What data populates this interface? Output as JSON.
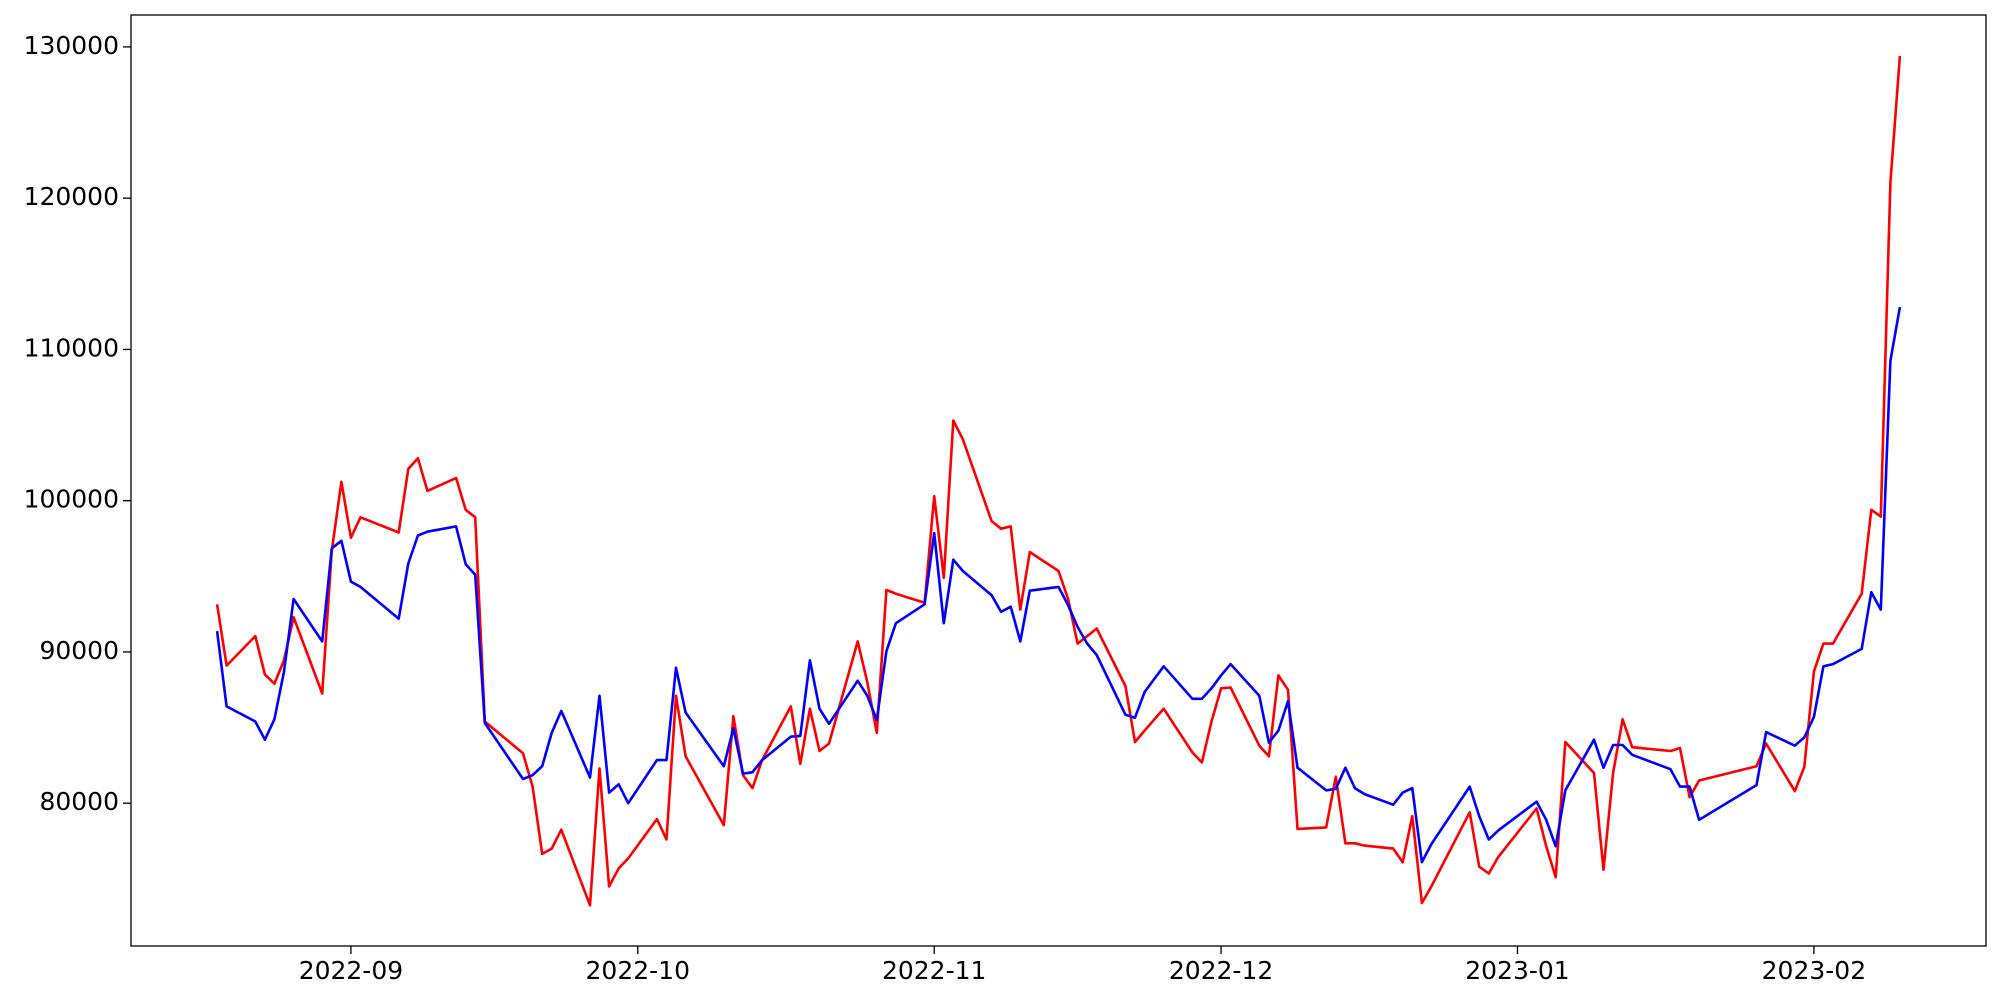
{
  "chart_data": {
    "type": "line",
    "x": [
      "2022-08-18",
      "2022-08-19",
      "2022-08-22",
      "2022-08-23",
      "2022-08-24",
      "2022-08-25",
      "2022-08-26",
      "2022-08-29",
      "2022-08-30",
      "2022-08-31",
      "2022-09-01",
      "2022-09-02",
      "2022-09-06",
      "2022-09-07",
      "2022-09-08",
      "2022-09-09",
      "2022-09-12",
      "2022-09-13",
      "2022-09-14",
      "2022-09-15",
      "2022-09-19",
      "2022-09-20",
      "2022-09-21",
      "2022-09-22",
      "2022-09-23",
      "2022-09-26",
      "2022-09-27",
      "2022-09-28",
      "2022-09-29",
      "2022-09-30",
      "2022-10-03",
      "2022-10-04",
      "2022-10-05",
      "2022-10-06",
      "2022-10-10",
      "2022-10-11",
      "2022-10-12",
      "2022-10-13",
      "2022-10-14",
      "2022-10-17",
      "2022-10-18",
      "2022-10-19",
      "2022-10-20",
      "2022-10-21",
      "2022-10-24",
      "2022-10-25",
      "2022-10-26",
      "2022-10-27",
      "2022-10-28",
      "2022-10-31",
      "2022-11-01",
      "2022-11-02",
      "2022-11-03",
      "2022-11-04",
      "2022-11-07",
      "2022-11-08",
      "2022-11-09",
      "2022-11-10",
      "2022-11-11",
      "2022-11-14",
      "2022-11-15",
      "2022-11-16",
      "2022-11-17",
      "2022-11-18",
      "2022-11-21",
      "2022-11-22",
      "2022-11-23",
      "2022-11-25",
      "2022-11-28",
      "2022-11-29",
      "2022-11-30",
      "2022-12-01",
      "2022-12-02",
      "2022-12-05",
      "2022-12-06",
      "2022-12-07",
      "2022-12-08",
      "2022-12-09",
      "2022-12-12",
      "2022-12-13",
      "2022-12-14",
      "2022-12-15",
      "2022-12-16",
      "2022-12-19",
      "2022-12-20",
      "2022-12-21",
      "2022-12-22",
      "2022-12-23",
      "2022-12-27",
      "2022-12-28",
      "2022-12-29",
      "2022-12-30",
      "2023-01-03",
      "2023-01-04",
      "2023-01-05",
      "2023-01-06",
      "2023-01-09",
      "2023-01-10",
      "2023-01-11",
      "2023-01-12",
      "2023-01-13",
      "2023-01-17",
      "2023-01-18",
      "2023-01-19",
      "2023-01-20",
      "2023-01-26",
      "2023-01-27",
      "2023-01-30",
      "2023-01-31",
      "2023-02-01",
      "2023-02-02",
      "2023-02-03",
      "2023-02-06",
      "2023-02-07",
      "2023-02-08",
      "2023-02-09",
      "2023-02-10"
    ],
    "series": [
      {
        "color": "#ff0000",
        "values": [
          93150,
          89100,
          91050,
          88500,
          87900,
          89450,
          92300,
          87250,
          96700,
          101250,
          97550,
          98900,
          97900,
          102100,
          102800,
          100650,
          101500,
          99400,
          98900,
          85400,
          83300,
          81100,
          76650,
          77000,
          78250,
          73250,
          82300,
          74500,
          75700,
          76350,
          78950,
          77600,
          87100,
          83100,
          78550,
          85750,
          81850,
          81000,
          82850,
          86400,
          82600,
          86250,
          83450,
          83950,
          90700,
          88000,
          84650,
          94100,
          93850,
          93250,
          100300,
          94900,
          105300,
          104050,
          98650,
          98150,
          98300,
          92800,
          96600,
          95350,
          93500,
          90550,
          91050,
          91550,
          87750,
          84050,
          84800,
          86250,
          83350,
          82700,
          85400,
          87600,
          87650,
          83800,
          83100,
          88450,
          87500,
          78300,
          78400,
          81750,
          77350,
          77350,
          77200,
          77000,
          76100,
          79150,
          73400,
          74500,
          79400,
          75800,
          75350,
          76450,
          79650,
          77150,
          75100,
          84050,
          82000,
          75600,
          82000,
          85550,
          83700,
          83450,
          83650,
          80400,
          81500,
          82450,
          83950,
          80800,
          82400,
          88700,
          90550,
          90550,
          93850,
          99400,
          98950,
          121050,
          129400
        ]
      },
      {
        "color": "#0000ff",
        "values": [
          91380,
          86400,
          85400,
          84200,
          85550,
          88700,
          93500,
          90700,
          96850,
          97350,
          94650,
          94300,
          92200,
          95850,
          97700,
          97950,
          98300,
          95800,
          95100,
          85300,
          81600,
          81850,
          82450,
          84650,
          86100,
          81700,
          87100,
          80700,
          81250,
          80000,
          82850,
          82850,
          88950,
          86000,
          82450,
          84950,
          81950,
          82050,
          82850,
          84400,
          84450,
          89450,
          86250,
          85250,
          88100,
          87100,
          85500,
          90050,
          91900,
          93150,
          97850,
          91900,
          96100,
          95350,
          93750,
          92650,
          93000,
          90700,
          94050,
          94300,
          93100,
          91650,
          90550,
          89800,
          85850,
          85650,
          87350,
          89050,
          86900,
          86900,
          87600,
          88450,
          89200,
          87100,
          84000,
          84800,
          86750,
          82350,
          80850,
          80950,
          82350,
          81000,
          80600,
          79900,
          80700,
          81000,
          76100,
          77300,
          81100,
          79150,
          77600,
          78200,
          80100,
          78900,
          77150,
          80850,
          84200,
          82350,
          83850,
          83850,
          83200,
          82250,
          81100,
          81100,
          78900,
          81200,
          84700,
          83800,
          84350,
          85700,
          89050,
          89200,
          90200,
          93950,
          92800,
          109250,
          112800
        ]
      }
    ],
    "xlim": [
      "2022-08-09",
      "2023-02-19"
    ],
    "xticks": [
      {
        "value": "2022-09-01",
        "label": "2022-09"
      },
      {
        "value": "2022-10-01",
        "label": "2022-10"
      },
      {
        "value": "2022-11-01",
        "label": "2022-11"
      },
      {
        "value": "2022-12-01",
        "label": "2022-12"
      },
      {
        "value": "2023-01-01",
        "label": "2023-01"
      },
      {
        "value": "2023-02-01",
        "label": "2023-02"
      }
    ],
    "ylim": [
      70560,
      132110
    ],
    "yticks": [
      80000,
      90000,
      100000,
      110000,
      120000,
      130000
    ]
  }
}
